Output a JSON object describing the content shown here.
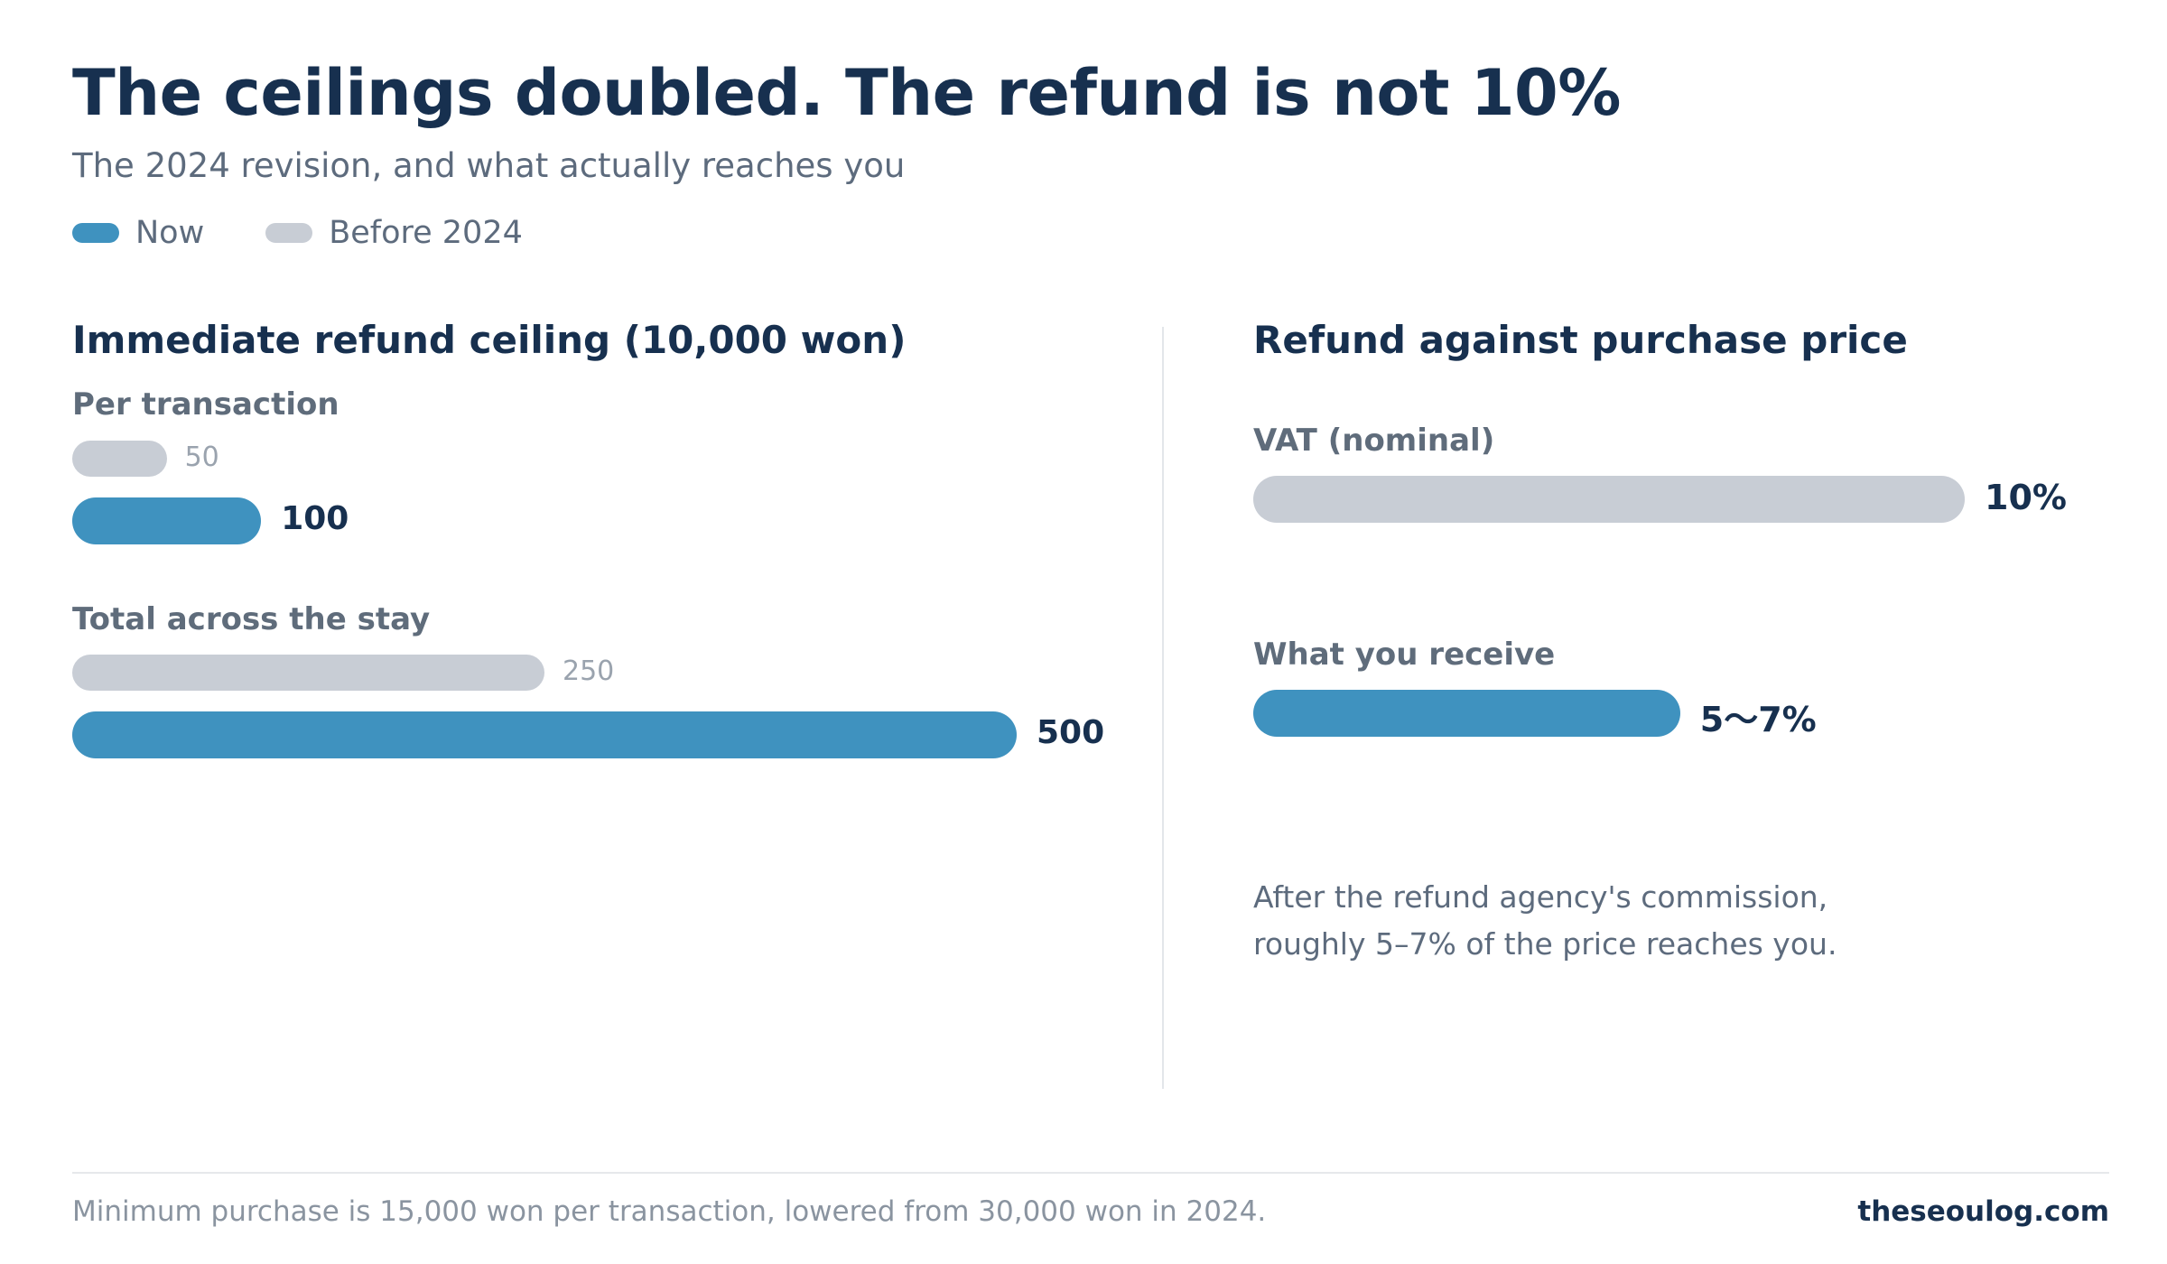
{
  "header": {
    "title": "The ceilings doubled. The refund is not 10%",
    "subtitle": "The 2024 revision, and what actually reaches you"
  },
  "legend": {
    "now": "Now",
    "before": "Before 2024"
  },
  "colors": {
    "now": "#3f92bf",
    "before": "#c8cdd5",
    "title": "#17304f",
    "muted": "#5d6b7d"
  },
  "chart_data": [
    {
      "type": "bar",
      "orientation": "horizontal",
      "title": "Immediate refund ceiling (10,000 won)",
      "categories": [
        "Per transaction",
        "Total across the stay"
      ],
      "series": [
        {
          "name": "Before 2024",
          "values": [
            50,
            250
          ],
          "labels": [
            "50",
            "250"
          ]
        },
        {
          "name": "Now",
          "values": [
            100,
            500
          ],
          "labels": [
            "100",
            "500"
          ]
        }
      ],
      "xlim": [
        0,
        500
      ],
      "grid": false,
      "legend": "top-left"
    },
    {
      "type": "bar",
      "orientation": "horizontal",
      "title": "Refund against purchase price",
      "categories": [
        "VAT (nominal)",
        "What you receive"
      ],
      "values": [
        10,
        6
      ],
      "ranges": [
        [
          10,
          10
        ],
        [
          5,
          7
        ]
      ],
      "labels": [
        "10%",
        "5〜7%"
      ],
      "colors": [
        "#c8cdd5",
        "#3f92bf"
      ],
      "xlim": [
        0,
        10
      ],
      "grid": false
    }
  ],
  "note": {
    "line1": "After the refund agency's commission,",
    "line2": "roughly 5–7% of the price reaches you."
  },
  "footer": {
    "footnote": "Minimum purchase is 15,000 won per transaction, lowered from 30,000 won in 2024.",
    "source": "theseoulog.com"
  }
}
